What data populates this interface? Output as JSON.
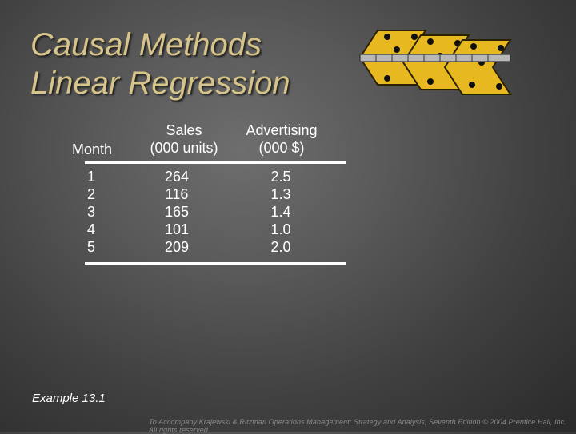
{
  "slide": {
    "title_line1": "Causal Methods",
    "title_line2": "Linear Regression",
    "example_label": "Example 13.1",
    "footer": "To Accompany Krajewski & Ritzman Operations Management: Strategy and Analysis, Seventh Edition © 2004 Prentice Hall, Inc. All rights reserved.",
    "logo_icon": "hinged-dice-icon",
    "colors": {
      "title": "#d7c48a",
      "text": "#ffffff",
      "dice": "#e8b820"
    }
  },
  "table": {
    "headers": {
      "month": "Month",
      "sales_line1": "Sales",
      "sales_line2": "(000 units)",
      "adv_line1": "Advertising",
      "adv_line2": "(000 $)"
    },
    "months": [
      "1",
      "2",
      "3",
      "4",
      "5"
    ],
    "sales": [
      "264",
      "116",
      "165",
      "101",
      "209"
    ],
    "advertising": [
      "2.5",
      "1.3",
      "1.4",
      "1.0",
      "2.0"
    ]
  }
}
